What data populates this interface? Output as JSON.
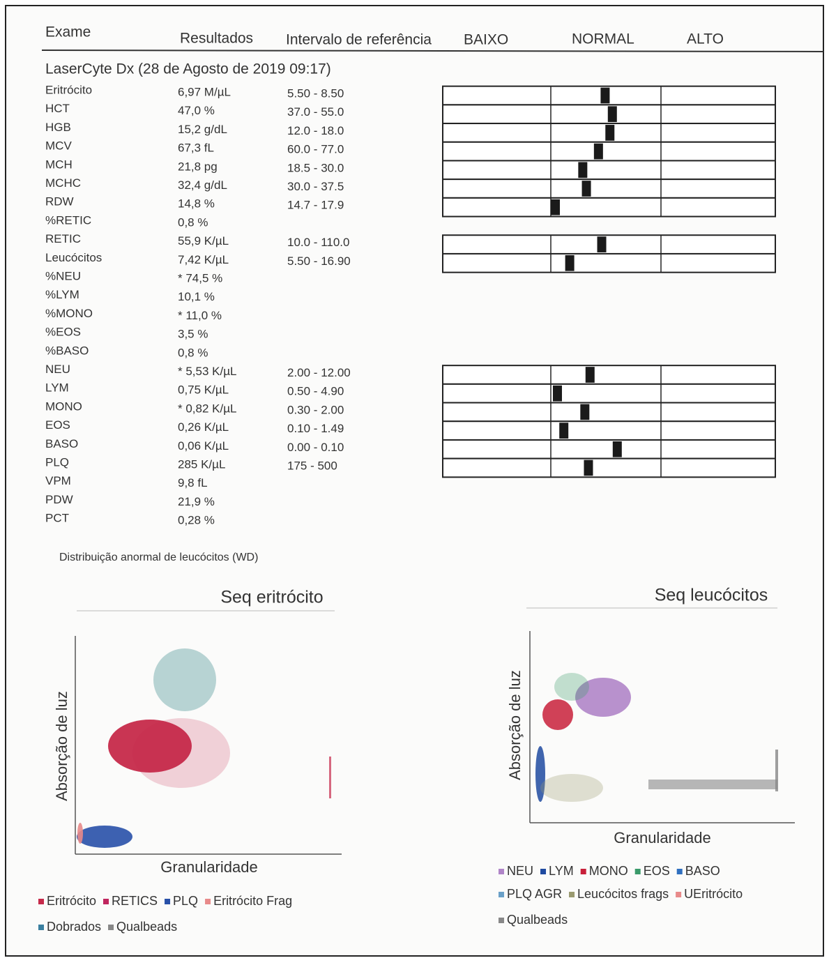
{
  "header": {
    "exam": "Exame",
    "results": "Resultados",
    "reference": "Intervalo de referência",
    "low": "BAIXO",
    "normal": "NORMAL",
    "high": "ALTO"
  },
  "instrument": "LaserCyte Dx (28 de Agosto de 2019 09:17)",
  "rows": [
    {
      "test": "Eritrócito",
      "result": "6,97 M/µL",
      "range": "5.50 - 8.50"
    },
    {
      "test": "HCT",
      "result": "47,0 %",
      "range": "37.0 - 55.0"
    },
    {
      "test": "HGB",
      "result": "15,2 g/dL",
      "range": "12.0 - 18.0"
    },
    {
      "test": "MCV",
      "result": "67,3 fL",
      "range": "60.0 - 77.0"
    },
    {
      "test": "MCH",
      "result": "21,8 pg",
      "range": "18.5 - 30.0"
    },
    {
      "test": "MCHC",
      "result": "32,4 g/dL",
      "range": "30.0 - 37.5"
    },
    {
      "test": "RDW",
      "result": "14,8 %",
      "range": "14.7 - 17.9"
    },
    {
      "test": "%RETIC",
      "result": "0,8 %"
    },
    {
      "test": "RETIC",
      "result": "55,9 K/µL",
      "range": "10.0 - 110.0"
    },
    {
      "test": "Leucócitos",
      "result": "7,42 K/µL",
      "range": "5.50 - 16.90"
    },
    {
      "test": "%NEU",
      "result": "* 74,5 %"
    },
    {
      "test": "%LYM",
      "result": "10,1 %"
    },
    {
      "test": "%MONO",
      "result": "* 11,0 %"
    },
    {
      "test": "%EOS",
      "result": "3,5 %"
    },
    {
      "test": "%BASO",
      "result": "0,8 %"
    },
    {
      "test": "NEU",
      "result": "* 5,53 K/µL",
      "range": "2.00 - 12.00"
    },
    {
      "test": "LYM",
      "result": "0,75 K/µL",
      "range": "0.50 - 4.90"
    },
    {
      "test": "MONO",
      "result": "* 0,82 K/µL",
      "range": "0.30 - 2.00"
    },
    {
      "test": "EOS",
      "result": "0,26 K/µL",
      "range": "0.10 - 1.49"
    },
    {
      "test": "BASO",
      "result": "0,06 K/µL",
      "range": "0.00 - 0.10"
    },
    {
      "test": "PLQ",
      "result": "285 K/µL",
      "range": "175 - 500"
    },
    {
      "test": "VPM",
      "result": "9,8 fL"
    },
    {
      "test": "PDW",
      "result": "21,9 %"
    },
    {
      "test": "PCT",
      "result": "0,28 %"
    }
  ],
  "note": "Distribuição anormal de leucócitos (WD)",
  "charts": [
    {
      "title": "Seq eritrócito",
      "y_label": "Absorção de luz",
      "x_label": "Granularidade",
      "legend": [
        [
          {
            "name": "Eritrócito",
            "color": "#c62a4a"
          },
          {
            "name": "RETICS",
            "color": "#c0265e"
          },
          {
            "name": "PLQ",
            "color": "#2850a8"
          },
          {
            "name": "Eritrócito Frag",
            "color": "#e88a8a"
          }
        ],
        [
          {
            "name": "Dobrados",
            "color": "#3a7fa0"
          },
          {
            "name": "Qualbeads",
            "color": "#888888"
          }
        ]
      ]
    },
    {
      "title": "Seq leucócitos",
      "y_label": "Absorção de luz",
      "x_label": "Granularidade",
      "legend": [
        [
          {
            "name": "NEU",
            "color": "#b085c8"
          },
          {
            "name": "LYM",
            "color": "#1f4aa0"
          },
          {
            "name": "MONO",
            "color": "#c8203a"
          },
          {
            "name": "EOS",
            "color": "#3a9a6a"
          },
          {
            "name": "BASO",
            "color": "#3070c0"
          }
        ],
        [
          {
            "name": "PLQ AGR",
            "color": "#6aa0c8"
          },
          {
            "name": "Leucócitos frags",
            "color": "#9a9a70"
          },
          {
            "name": "UEritrócito",
            "color": "#e88a8a"
          }
        ],
        [
          {
            "name": "Qualbeads",
            "color": "#888888"
          }
        ]
      ]
    }
  ]
}
